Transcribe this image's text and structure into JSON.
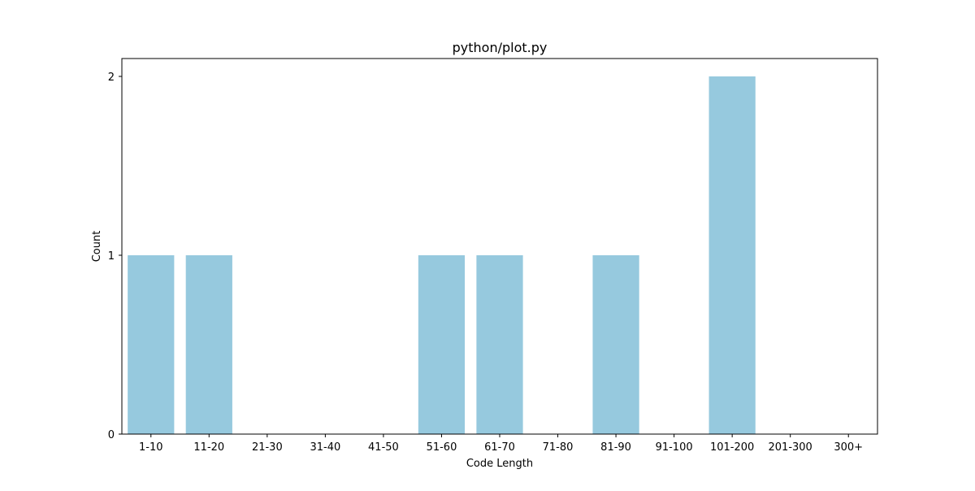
{
  "chart_data": {
    "type": "bar",
    "title": "python/plot.py",
    "xlabel": "Code Length",
    "ylabel": "Count",
    "categories": [
      "1-10",
      "11-20",
      "21-30",
      "31-40",
      "41-50",
      "51-60",
      "61-70",
      "71-80",
      "81-90",
      "91-100",
      "101-200",
      "201-300",
      "300+"
    ],
    "values": [
      1,
      1,
      0,
      0,
      0,
      1,
      1,
      0,
      1,
      0,
      2,
      0,
      0
    ],
    "ylim": [
      0,
      2.1
    ],
    "yticks": [
      0,
      1,
      2
    ],
    "bar_color": "#96c9de",
    "grid": false,
    "legend": "none"
  }
}
